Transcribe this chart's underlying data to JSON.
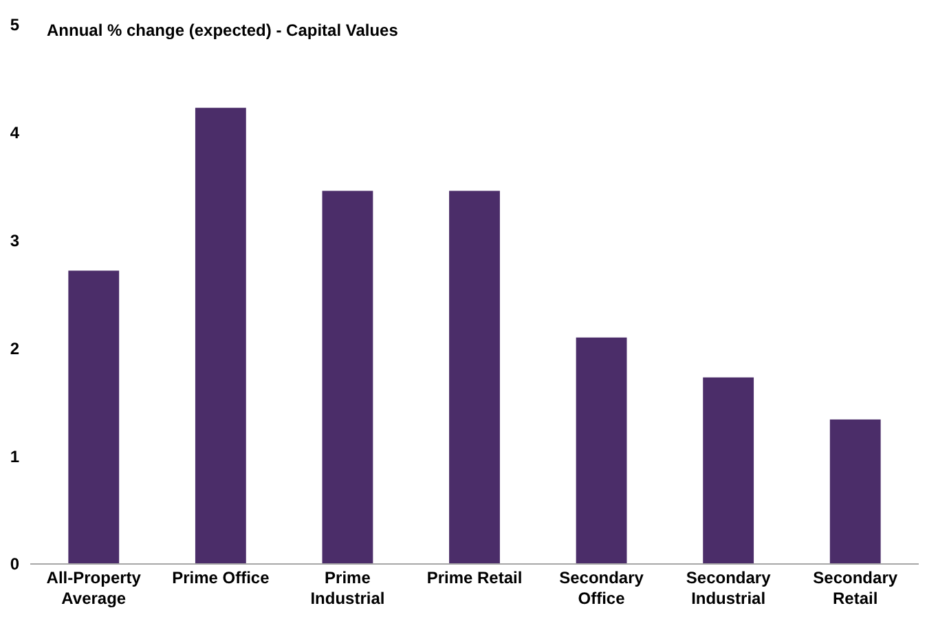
{
  "chart_data": {
    "type": "bar",
    "title": "Annual % change (expected) - Capital Values",
    "categories": [
      "All-Property Average",
      "Prime Office",
      "Prime Industrial",
      "Prime Retail",
      "Secondary Office",
      "Secondary Industrial",
      "Secondary Retail"
    ],
    "values": [
      2.72,
      4.23,
      3.46,
      3.46,
      2.1,
      1.73,
      1.34
    ],
    "color": "#4b2d69",
    "ylim": [
      0,
      5
    ],
    "yticks": [
      0,
      1,
      2,
      3,
      4,
      5
    ],
    "grid": false
  }
}
